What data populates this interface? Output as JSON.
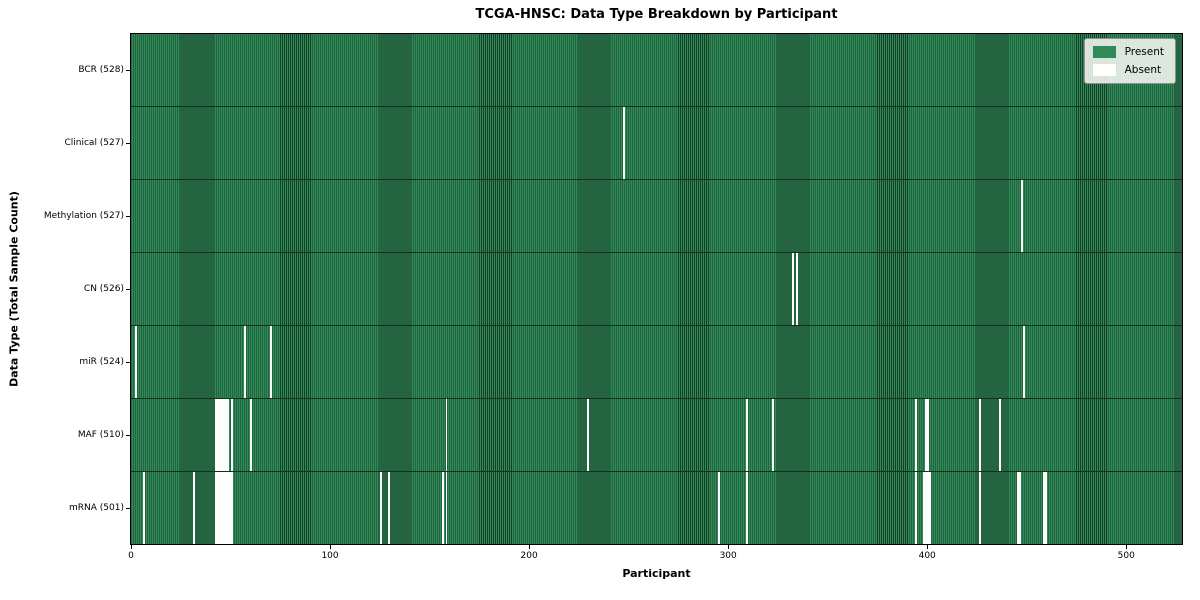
{
  "title": "TCGA-HNSC: Data Type Breakdown by Participant",
  "colors": {
    "present": "#2e8b57",
    "absent": "#ffffff",
    "bar_edge": "#1a3d28",
    "axes_border": "#000000",
    "legend_border": "#8f8f8f"
  },
  "legend_labels": [
    "Present",
    "Absent"
  ],
  "chart_data": {
    "type": "heatmap",
    "title": "TCGA-HNSC: Data Type Breakdown by Participant",
    "xlabel": "Participant",
    "ylabel": "Data Type (Total Sample Count)",
    "legend": [
      "Present",
      "Absent"
    ],
    "legend_position": "upper right",
    "grid": false,
    "total_participants": 528,
    "x_range": [
      0,
      528
    ],
    "x_ticks": [
      0,
      100,
      200,
      300,
      400,
      500
    ],
    "x_tick_labels": [
      "0",
      "100",
      "200",
      "300",
      "400",
      "500"
    ],
    "rows": [
      {
        "name": "bcr",
        "label": "BCR (528)",
        "data_type": "BCR",
        "count": 528,
        "absent_participants": []
      },
      {
        "name": "clinical",
        "label": "Clinical (527)",
        "data_type": "Clinical",
        "count": 527,
        "absent_participants": [
          247
        ]
      },
      {
        "name": "methylation",
        "label": "Methylation (527)",
        "data_type": "Methylation",
        "count": 527,
        "absent_participants": [
          447
        ]
      },
      {
        "name": "cn",
        "label": "CN (526)",
        "data_type": "CN",
        "count": 526,
        "absent_participants": [
          332,
          334
        ]
      },
      {
        "name": "mir",
        "label": "miR (524)",
        "data_type": "miR",
        "count": 524,
        "absent_participants": [
          2,
          57,
          70,
          448
        ]
      },
      {
        "name": "maf",
        "label": "MAF (510)",
        "data_type": "MAF",
        "count": 510,
        "absent_participants": [
          42,
          43,
          44,
          45,
          46,
          47,
          48,
          50,
          60,
          158,
          229,
          309,
          322,
          394,
          399,
          400,
          426,
          436
        ]
      },
      {
        "name": "mrna",
        "label": "mRNA (501)",
        "data_type": "mRNA",
        "count": 501,
        "absent_participants": [
          6,
          31,
          42,
          43,
          44,
          45,
          46,
          47,
          48,
          49,
          50,
          125,
          129,
          156,
          158,
          295,
          309,
          394,
          398,
          399,
          400,
          401,
          426,
          445,
          446,
          458,
          459
        ]
      }
    ]
  }
}
